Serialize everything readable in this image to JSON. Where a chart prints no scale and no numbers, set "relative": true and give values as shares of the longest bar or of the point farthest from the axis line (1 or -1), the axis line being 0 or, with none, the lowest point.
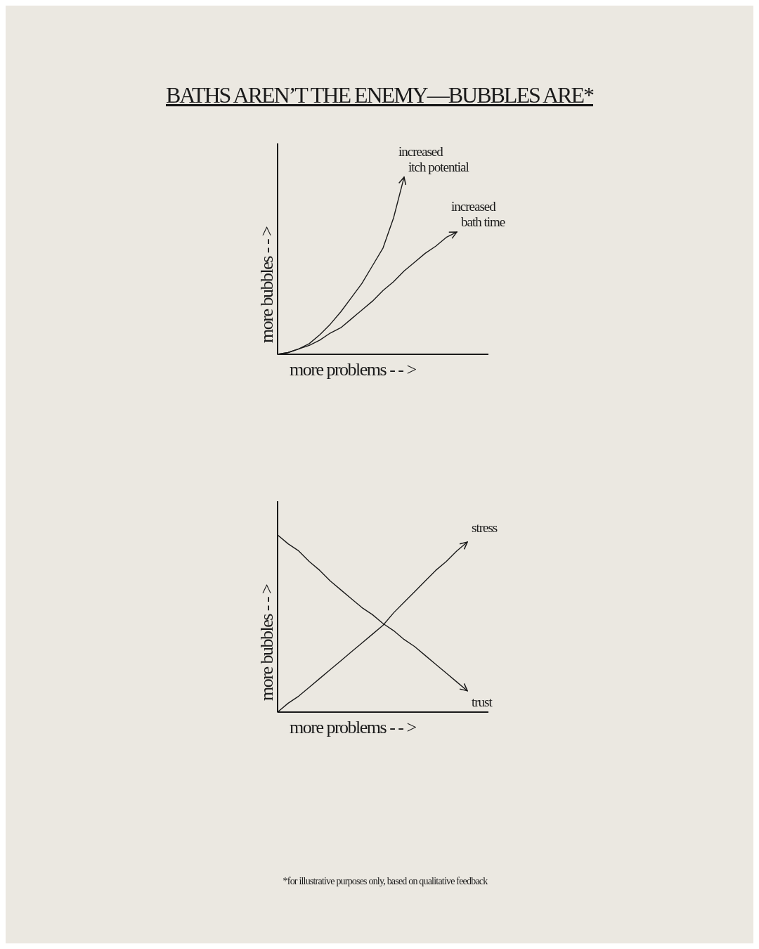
{
  "chart_data": [
    {
      "type": "line",
      "title": "BATHS AREN’T THE ENEMY—BUBBLES ARE*",
      "xlabel": "more problems - - >",
      "ylabel": "more bubbles - - >",
      "relative": true,
      "line_style": "solid",
      "categories": [
        null,
        null,
        null,
        null,
        null,
        null,
        null,
        null,
        null,
        null,
        null,
        null,
        null,
        null,
        null,
        null,
        null,
        null,
        null,
        null,
        null
      ],
      "series": [
        {
          "name": "increased itch potential",
          "color": "#1a1a1a",
          "values": [
            0,
            0.01,
            0.03,
            0.06,
            0.11,
            0.17,
            0.24,
            0.32,
            0.4,
            0.5,
            0.6,
            0.77,
            1,
            null,
            null,
            null,
            null,
            null,
            null,
            null,
            null
          ]
        },
        {
          "name": "increased bath time",
          "color": "#1a1a1a",
          "values": [
            0,
            0.01,
            0.03,
            0.05,
            0.08,
            0.12,
            0.15,
            0.2,
            0.25,
            0.3,
            0.36,
            0.41,
            0.47,
            0.52,
            0.57,
            0.61,
            0.66,
            0.69,
            null,
            null,
            null
          ]
        }
      ]
    },
    {
      "type": "line",
      "xlabel": "more problems - - >",
      "ylabel": "more bubbles - - >",
      "relative": true,
      "line_style": "solid",
      "categories": [
        null,
        null,
        null,
        null,
        null,
        null,
        null,
        null,
        null,
        null,
        null,
        null,
        null,
        null,
        null,
        null,
        null,
        null,
        null,
        null,
        null
      ],
      "annotations": [
        "*for illustrative purposes only, based on qualitative feedback"
      ],
      "series": [
        {
          "name": "stress",
          "color": "#1a1a1a",
          "values": [
            0,
            0.05,
            0.09,
            0.14,
            0.19,
            0.24,
            0.29,
            0.34,
            0.39,
            0.44,
            0.49,
            0.56,
            0.62,
            0.68,
            0.74,
            0.8,
            0.85,
            0.91,
            0.96,
            null,
            null
          ]
        },
        {
          "name": "trust",
          "color": "#1a1a1a",
          "values": [
            1,
            0.95,
            0.91,
            0.85,
            0.8,
            0.74,
            0.69,
            0.64,
            0.59,
            0.55,
            0.5,
            0.46,
            0.41,
            0.37,
            0.32,
            0.27,
            0.22,
            0.17,
            0.12,
            null,
            null
          ]
        }
      ]
    }
  ]
}
